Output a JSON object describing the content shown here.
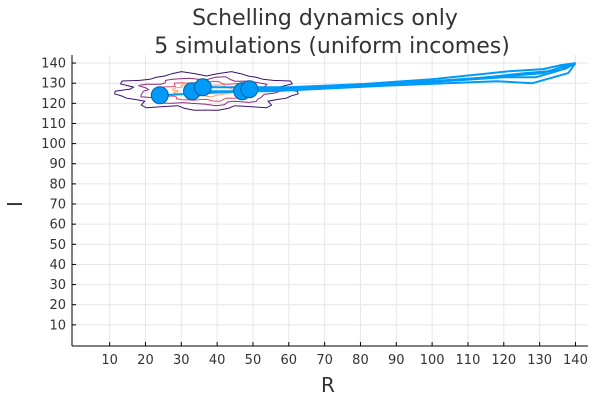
{
  "chart_data": {
    "type": "line",
    "title_line1": "Schelling dynamics only",
    "title_line2": "5 simulations (uniform incomes)",
    "xlabel": "R",
    "ylabel": "I",
    "xlim": [
      -0.5,
      143.5
    ],
    "ylim": [
      -0.5,
      144
    ],
    "xticks": [
      10,
      20,
      30,
      40,
      50,
      60,
      70,
      80,
      90,
      100,
      110,
      120,
      130,
      140
    ],
    "yticks": [
      10,
      20,
      30,
      40,
      50,
      60,
      70,
      80,
      90,
      100,
      110,
      120,
      130,
      140
    ],
    "grid": true,
    "legend": false,
    "line_color": "#009af9",
    "contour_colors": [
      "#3b0f70",
      "#8c2981",
      "#de4968",
      "#fe9f6d",
      "#fcfdbf"
    ],
    "endpoints": [
      {
        "x": 24,
        "y": 124
      },
      {
        "x": 33,
        "y": 126
      },
      {
        "x": 36,
        "y": 128
      },
      {
        "x": 47,
        "y": 126
      },
      {
        "x": 49,
        "y": 127
      }
    ],
    "series": [
      {
        "values": [
          [
            140,
            140
          ],
          [
            137,
            137
          ],
          [
            133,
            136
          ],
          [
            126,
            135
          ],
          [
            110,
            132
          ],
          [
            80,
            129
          ],
          [
            49,
            127
          ]
        ]
      },
      {
        "values": [
          [
            140,
            140
          ],
          [
            136,
            138
          ],
          [
            131,
            135
          ],
          [
            124,
            134
          ],
          [
            100,
            131
          ],
          [
            60,
            128
          ],
          [
            36,
            128
          ]
        ]
      },
      {
        "values": [
          [
            140,
            140
          ],
          [
            138,
            135
          ],
          [
            128,
            130
          ],
          [
            118,
            131
          ],
          [
            90,
            129
          ],
          [
            55,
            126
          ],
          [
            33,
            126
          ]
        ]
      },
      {
        "values": [
          [
            140,
            140
          ],
          [
            135,
            136
          ],
          [
            129,
            133
          ],
          [
            120,
            133
          ],
          [
            95,
            130
          ],
          [
            62,
            127
          ],
          [
            47,
            126
          ]
        ]
      },
      {
        "values": [
          [
            140,
            140
          ],
          [
            136,
            139
          ],
          [
            131,
            137
          ],
          [
            122,
            136
          ],
          [
            100,
            132
          ],
          [
            60,
            127
          ],
          [
            24,
            124
          ]
        ]
      }
    ],
    "contours": [
      {
        "cx": 37,
        "cy": 126,
        "rx": 24,
        "ry": 9,
        "level": 0
      },
      {
        "cx": 37,
        "cy": 126,
        "rx": 18,
        "ry": 6.5,
        "level": 1
      },
      {
        "cx": 37,
        "cy": 126,
        "rx": 13,
        "ry": 4.5,
        "level": 2
      },
      {
        "cx": 36,
        "cy": 126.5,
        "rx": 8,
        "ry": 3,
        "level": 3
      }
    ]
  }
}
